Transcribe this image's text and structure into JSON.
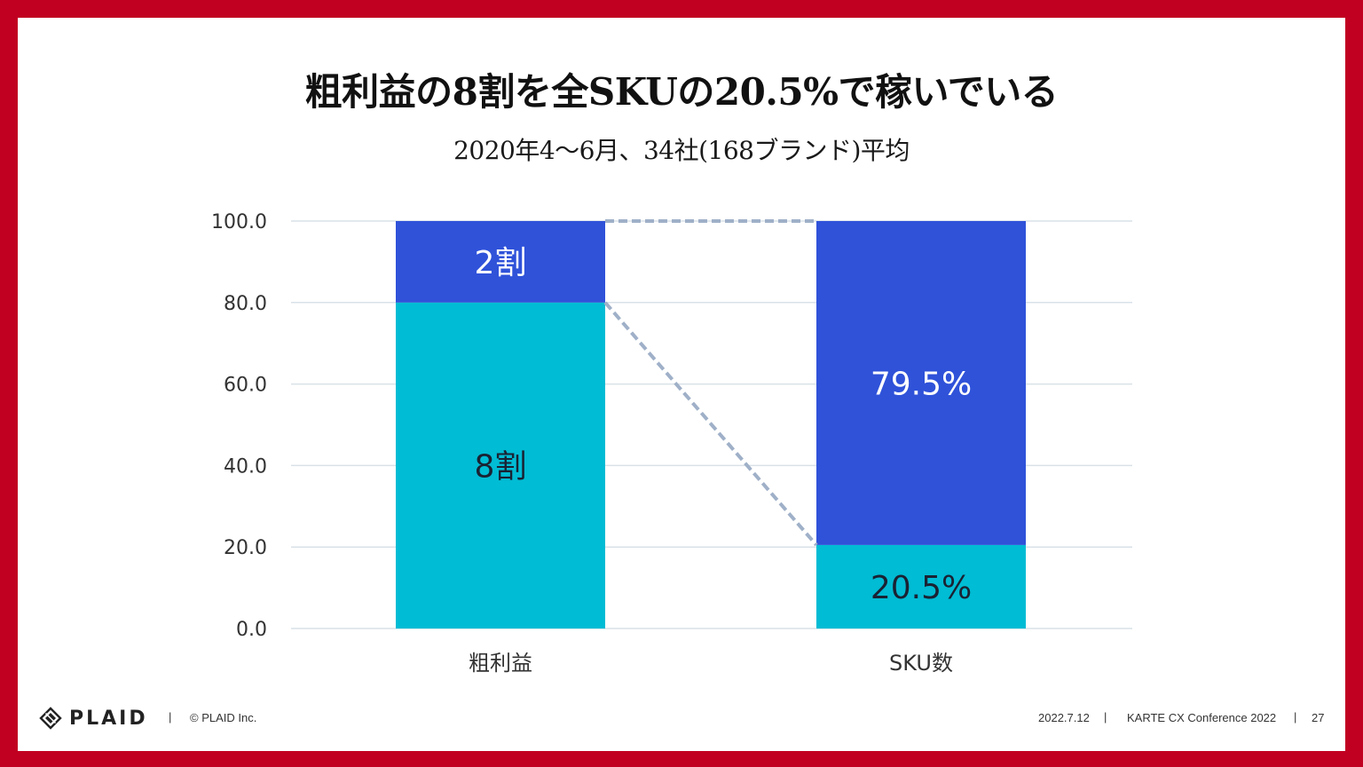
{
  "slide": {
    "title": "粗利益の8割を全SKUの20.5%で稼いでいる",
    "subtitle": "2020年4～6月、34社(168ブランド)平均"
  },
  "colors": {
    "frame": "#c10021",
    "series_top": "#2f52d9",
    "series_bottom": "#00bcd4",
    "connector": "#9fb0c8",
    "grid": "#d9e2e8"
  },
  "chart_data": {
    "type": "bar",
    "stacked": true,
    "categories": [
      "粗利益",
      "SKU数"
    ],
    "series": [
      {
        "values": [
          80.0,
          20.5
        ],
        "labels": [
          "8割",
          "20.5%"
        ],
        "color": "#00bcd4"
      },
      {
        "values": [
          20.0,
          79.5
        ],
        "labels": [
          "2割",
          "79.5%"
        ],
        "color": "#2f52d9"
      }
    ],
    "yticks": [
      "0.0",
      "20.0",
      "40.0",
      "60.0",
      "80.0",
      "100.0"
    ],
    "ylim": [
      0,
      100
    ],
    "grid": true,
    "connectors": [
      {
        "from": [
          0,
          100.0
        ],
        "to": [
          1,
          100.0
        ]
      },
      {
        "from": [
          0,
          80.0
        ],
        "to": [
          1,
          20.5
        ]
      }
    ]
  },
  "footer": {
    "logo": "PLAID",
    "separator": "|",
    "copyright": "© PLAID Inc.",
    "date": "2022.7.12",
    "event": "KARTE CX Conference 2022",
    "page": "27"
  }
}
